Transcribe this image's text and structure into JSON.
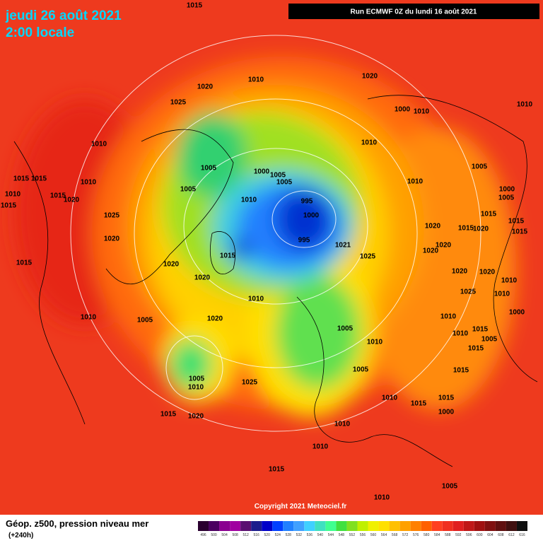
{
  "header": {
    "date": "jeudi 26 août 2021",
    "time": "2:00 locale",
    "run": "Run ECMWF 0Z du lundi 16 août 2021"
  },
  "footer": {
    "copyright": "Copyright 2021 Meteociel.fr",
    "legend_title": "Géop. z500, pression niveau mer",
    "lead": "(+240h)"
  },
  "colorbar": {
    "levels": [
      496,
      500,
      504,
      508,
      512,
      516,
      520,
      524,
      528,
      532,
      536,
      540,
      544,
      548,
      552,
      556,
      560,
      564,
      568,
      572,
      576,
      580,
      584,
      588,
      592,
      596,
      600,
      604,
      608,
      612,
      616
    ],
    "colors": [
      "#2a0030",
      "#4b0060",
      "#8a0090",
      "#a000a0",
      "#5a1070",
      "#1c1c8c",
      "#0000c8",
      "#0040ff",
      "#2080ff",
      "#40a0ff",
      "#40d0ff",
      "#40e0c0",
      "#40ff90",
      "#40e040",
      "#80e020",
      "#c0f000",
      "#f0f000",
      "#ffe000",
      "#ffc000",
      "#ffa000",
      "#ff8000",
      "#ff6000",
      "#ff4020",
      "#f03020",
      "#e02020",
      "#c01818",
      "#a01010",
      "#801010",
      "#601010",
      "#401010",
      "#101010"
    ]
  },
  "isobar_labels": [
    "1015",
    "1010",
    "1020",
    "1020",
    "1025",
    "1000",
    "1010",
    "1010",
    "1010",
    "1010",
    "1005",
    "1000",
    "1005",
    "1005",
    "1005",
    "1015",
    "1015",
    "1010",
    "1010",
    "1005",
    "1010",
    "1015",
    "1020",
    "1000",
    "1005",
    "1015",
    "995",
    "1010",
    "1025",
    "1000",
    "1015",
    "1015",
    "1020",
    "1020",
    "1015",
    "1020",
    "995",
    "1015",
    "1021",
    "1020",
    "1020",
    "1015",
    "1025",
    "1015",
    "1020",
    "1020",
    "1020",
    "1020",
    "1010",
    "1010",
    "1025",
    "1010",
    "1010",
    "1005",
    "1020",
    "1010",
    "1000",
    "1015",
    "1010",
    "1005",
    "1005",
    "1015",
    "1010",
    "1005",
    "1015",
    "1005",
    "1010",
    "1025",
    "1010",
    "1015",
    "1015",
    "1000",
    "1015",
    "1020",
    "1010",
    "1010",
    "1015",
    "1005",
    "1010"
  ]
}
